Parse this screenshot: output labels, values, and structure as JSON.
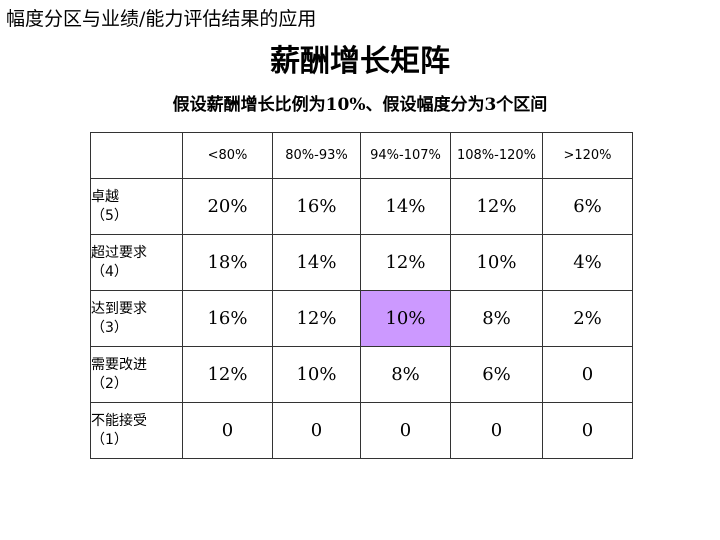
{
  "top_caption": "幅度分区与业绩/能力评估结果的应用",
  "title": "薪酬增长矩阵",
  "subtitle": "假设薪酬增长比例为10%、假设幅度分为3个区间",
  "highlight_color": "#cc99ff",
  "columns": [
    "<80%",
    "80%-93%",
    "94%-107%",
    "108%-120%",
    ">120%"
  ],
  "rows": [
    {
      "label": "卓越",
      "score": "（5）",
      "values": [
        "20%",
        "16%",
        "14%",
        "12%",
        "6%"
      ]
    },
    {
      "label": "超过要求",
      "score": "（4）",
      "values": [
        "18%",
        "14%",
        "12%",
        "10%",
        "4%"
      ]
    },
    {
      "label": "达到要求",
      "score": "（3）",
      "values": [
        "16%",
        "12%",
        "10%",
        "8%",
        "2%"
      ]
    },
    {
      "label": "需要改进",
      "score": "（2）",
      "values": [
        "12%",
        "10%",
        "8%",
        "6%",
        "0"
      ]
    },
    {
      "label": "不能接受",
      "score": "（1）",
      "values": [
        "0",
        "0",
        "0",
        "0",
        "0"
      ]
    }
  ],
  "highlighted_cell": {
    "row": 2,
    "col": 2
  }
}
